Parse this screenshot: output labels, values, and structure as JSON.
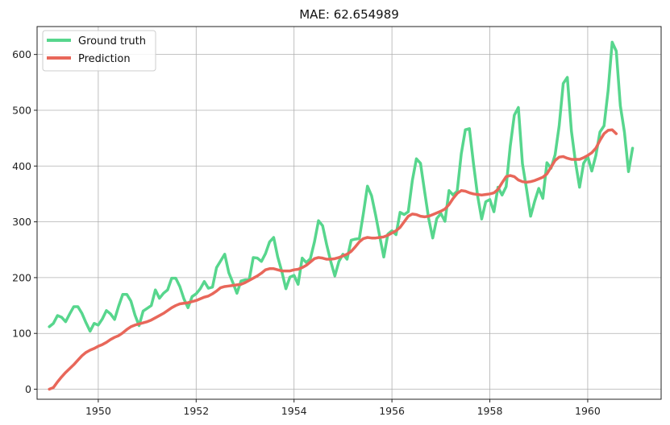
{
  "chart_data": {
    "type": "line",
    "title": "MAE: 62.654989",
    "xlabel": "",
    "ylabel": "",
    "xlim": [
      1948.75,
      1961.5
    ],
    "ylim": [
      -18,
      650
    ],
    "xticks": [
      1950,
      1952,
      1954,
      1956,
      1958,
      1960
    ],
    "xtick_labels": [
      "1950",
      "1952",
      "1954",
      "1956",
      "1958",
      "1960"
    ],
    "yticks": [
      0,
      100,
      200,
      300,
      400,
      500,
      600
    ],
    "ytick_labels": [
      "0",
      "100",
      "200",
      "300",
      "400",
      "500",
      "600"
    ],
    "grid": true,
    "legend_position": "top-left",
    "x_start": 1949.0,
    "x_step": 0.0833333,
    "series": [
      {
        "name": "Ground truth",
        "color": "#57d68d",
        "values": [
          112,
          118,
          132,
          129,
          121,
          135,
          148,
          148,
          136,
          119,
          104,
          118,
          115,
          126,
          141,
          135,
          125,
          149,
          170,
          170,
          158,
          133,
          114,
          140,
          145,
          150,
          178,
          163,
          172,
          178,
          199,
          199,
          184,
          162,
          146,
          166,
          171,
          180,
          193,
          181,
          183,
          218,
          230,
          242,
          209,
          191,
          172,
          194,
          196,
          196,
          236,
          235,
          229,
          243,
          264,
          272,
          237,
          211,
          180,
          201,
          204,
          188,
          235,
          227,
          234,
          264,
          302,
          293,
          259,
          229,
          203,
          229,
          242,
          233,
          267,
          269,
          270,
          315,
          364,
          347,
          312,
          274,
          237,
          278,
          284,
          277,
          317,
          313,
          318,
          374,
          413,
          405,
          355,
          306,
          271,
          306,
          315,
          301,
          356,
          348,
          355,
          422,
          465,
          467,
          404,
          347,
          305,
          336,
          340,
          318,
          362,
          348,
          363,
          435,
          491,
          505,
          404,
          359,
          310,
          337,
          360,
          342,
          406,
          396,
          420,
          472,
          548,
          559,
          463,
          407,
          362,
          405,
          417,
          391,
          419,
          461,
          472,
          535,
          622,
          606,
          508,
          461,
          390,
          432
        ]
      },
      {
        "name": "Prediction",
        "color": "#e8675a",
        "values": [
          0,
          3,
          13,
          22,
          30,
          37,
          44,
          52,
          60,
          66,
          70,
          73,
          77,
          80,
          84,
          89,
          93,
          96,
          101,
          107,
          112,
          115,
          117,
          119,
          121,
          124,
          128,
          132,
          136,
          141,
          146,
          150,
          153,
          154,
          155,
          157,
          159,
          162,
          165,
          167,
          171,
          176,
          182,
          184,
          185,
          186,
          187,
          188,
          191,
          195,
          199,
          203,
          208,
          214,
          216,
          216,
          214,
          212,
          212,
          212,
          214,
          215,
          218,
          222,
          228,
          234,
          236,
          235,
          233,
          233,
          234,
          236,
          239,
          242,
          247,
          255,
          264,
          270,
          272,
          271,
          271,
          272,
          273,
          276,
          280,
          284,
          290,
          300,
          310,
          314,
          313,
          310,
          309,
          310,
          313,
          316,
          319,
          323,
          331,
          342,
          351,
          356,
          355,
          352,
          350,
          349,
          348,
          349,
          350,
          352,
          358,
          370,
          381,
          383,
          381,
          375,
          372,
          371,
          372,
          374,
          377,
          380,
          386,
          398,
          410,
          416,
          417,
          414,
          412,
          412,
          412,
          415,
          419,
          424,
          432,
          446,
          458,
          464,
          465,
          458
        ]
      }
    ]
  }
}
